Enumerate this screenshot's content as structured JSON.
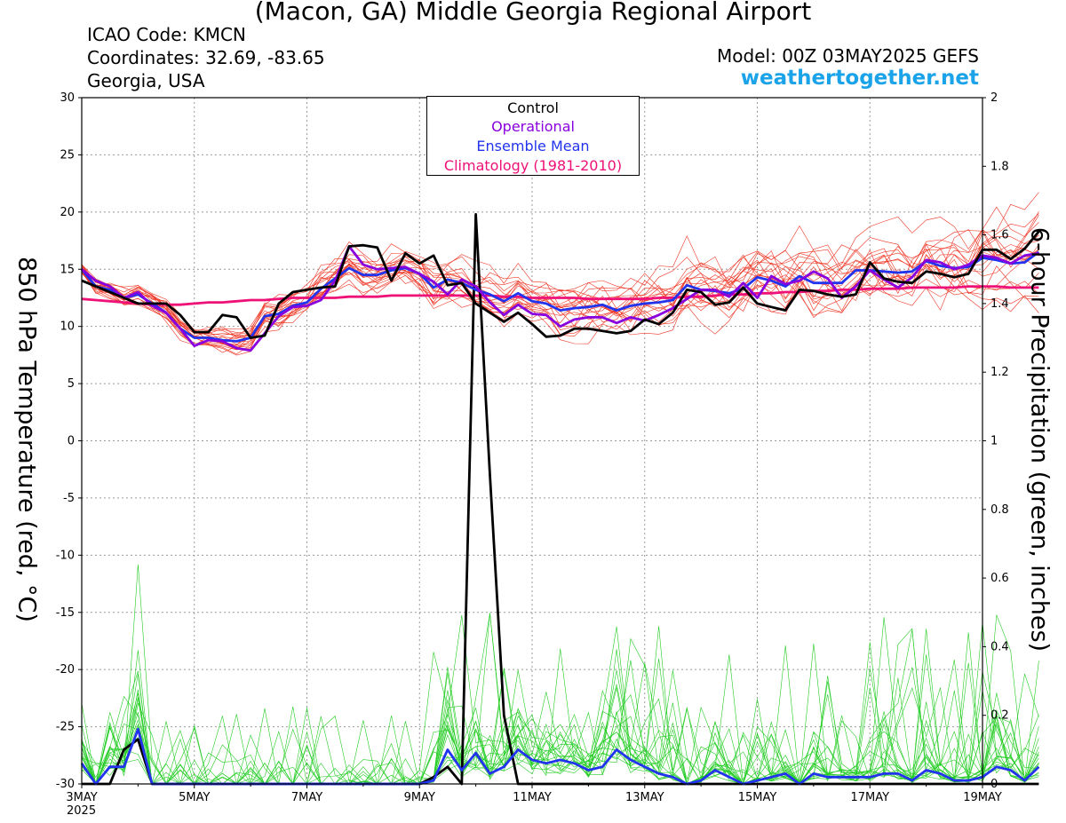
{
  "header": {
    "title": "(Macon, GA) Middle Georgia Regional Airport",
    "icao": "ICAO Code: KMCN",
    "coordinates": "Coordinates: 32.69, -83.65",
    "region": "Georgia, USA",
    "model": "Model: 00Z 03MAY2025 GEFS",
    "site": "weathertogether.net"
  },
  "colors": {
    "control": "#000000",
    "operational": "#8800dd",
    "ensemble_mean": "#2233ee",
    "climatology": "#ee1177",
    "members_temp": "#ee3322",
    "members_precip": "#22cc22",
    "site": "#1aa3e8"
  },
  "chart_data": {
    "type": "line",
    "legend": [
      "Control",
      "Operational",
      "Ensemble Mean",
      "Climatology (1981-2010)"
    ],
    "legend_placement": "top-center",
    "xlabel": "",
    "ylabel_left": "850 hPa Temperature (red, °C)",
    "ylabel_right": "6-hour Precipitation (green, inches)",
    "x_tick_labels": [
      "3MAY",
      "5MAY",
      "7MAY",
      "9MAY",
      "11MAY",
      "13MAY",
      "15MAY",
      "17MAY",
      "19MAY"
    ],
    "x_year_label": "2025",
    "x_range_days": [
      0,
      16
    ],
    "ylim_left": [
      -30,
      30
    ],
    "y_ticks_left": [
      30,
      25,
      20,
      15,
      10,
      5,
      0,
      -5,
      -10,
      -15,
      -20,
      -25,
      -30
    ],
    "ylim_right": [
      0,
      2
    ],
    "y_ticks_right": [
      "2",
      "1.8",
      "1.6",
      "1.4",
      "1.2",
      "1",
      "0.8",
      "0.6",
      "0.4",
      "0.2",
      "0"
    ],
    "grid": true,
    "time_step_hours": 6,
    "series": [
      {
        "name": "Control",
        "axis": "left",
        "values": [
          14.0,
          13.5,
          13.0,
          12.5,
          12.0,
          12.0,
          12.0,
          11.0,
          9.5,
          9.5,
          11.0,
          10.8,
          9.0,
          9.2,
          12.0,
          13.0,
          13.2,
          13.4,
          13.5,
          17.0,
          17.1,
          16.9,
          14.0,
          16.4,
          15.5,
          16.2,
          13.6,
          13.8,
          12.0,
          11.2,
          10.4,
          11.2,
          10.2,
          9.1,
          9.2,
          9.8,
          9.8,
          9.6,
          9.4,
          9.6,
          10.6,
          10.2,
          11.2,
          13.2,
          13.0,
          11.9,
          12.1,
          13.4,
          12.0,
          11.7,
          11.4,
          13.2,
          13.1,
          12.8,
          12.6,
          12.8,
          15.6,
          14.2,
          13.9,
          13.8,
          14.8,
          14.6,
          14.3,
          14.6,
          16.7,
          16.7,
          15.9,
          16.8,
          18.3
        ]
      },
      {
        "name": "Operational",
        "axis": "left",
        "values": [
          15.0,
          14.0,
          13.5,
          12.5,
          13.0,
          11.8,
          11.2,
          9.8,
          8.3,
          8.8,
          8.7,
          8.1,
          7.9,
          9.4,
          10.9,
          11.7,
          11.8,
          12.3,
          14.0,
          17.0,
          15.4,
          15.0,
          15.1,
          15.2,
          14.6,
          13.9,
          12.8,
          14.1,
          13.5,
          12.1,
          11.0,
          11.9,
          11.1,
          11.0,
          10.0,
          10.6,
          10.8,
          10.8,
          10.3,
          10.8,
          10.5,
          11.0,
          11.6,
          12.4,
          13.2,
          13.2,
          12.6,
          13.8,
          12.5,
          14.4,
          13.7,
          14.0,
          14.8,
          14.2,
          12.5,
          13.5,
          14.9,
          14.1,
          13.4,
          14.3,
          15.8,
          15.6,
          15.0,
          15.4,
          16.2,
          16.0,
          15.5,
          16.2,
          16.4
        ]
      },
      {
        "name": "Ensemble Mean",
        "axis": "left",
        "values": [
          15.0,
          13.5,
          13.2,
          12.5,
          12.8,
          12.0,
          11.2,
          9.8,
          9.0,
          9.0,
          8.8,
          8.7,
          9.0,
          10.9,
          11.1,
          11.8,
          12.1,
          13.3,
          14.2,
          15.1,
          14.5,
          14.5,
          14.9,
          15.1,
          14.6,
          13.4,
          14.1,
          13.8,
          13.2,
          12.8,
          12.2,
          12.9,
          12.2,
          12.0,
          11.4,
          11.6,
          11.7,
          11.9,
          11.4,
          11.8,
          12.0,
          12.1,
          12.3,
          13.6,
          13.2,
          13.1,
          12.9,
          13.3,
          14.3,
          14.0,
          13.5,
          14.4,
          13.8,
          13.8,
          13.8,
          14.9,
          14.9,
          14.8,
          14.7,
          14.8,
          15.7,
          15.3,
          15.1,
          15.2,
          16.0,
          15.8,
          15.5,
          15.6,
          16.5
        ]
      },
      {
        "name": "Climatology (1981-2010)",
        "axis": "left",
        "values": [
          12.4,
          12.3,
          12.2,
          12.1,
          12.0,
          11.9,
          11.9,
          11.9,
          12.0,
          12.1,
          12.1,
          12.2,
          12.3,
          12.3,
          12.4,
          12.5,
          12.5,
          12.5,
          12.5,
          12.6,
          12.6,
          12.6,
          12.7,
          12.7,
          12.7,
          12.7,
          12.7,
          12.7,
          12.7,
          12.7,
          12.6,
          12.6,
          12.5,
          12.5,
          12.5,
          12.5,
          12.4,
          12.4,
          12.4,
          12.4,
          12.4,
          12.5,
          12.5,
          12.6,
          12.6,
          12.7,
          12.8,
          12.8,
          12.9,
          12.9,
          13.0,
          13.0,
          13.1,
          13.1,
          13.2,
          13.2,
          13.3,
          13.3,
          13.3,
          13.4,
          13.4,
          13.4,
          13.4,
          13.5,
          13.5,
          13.5,
          13.4,
          13.4,
          13.4
        ]
      },
      {
        "name": "Control",
        "axis": "right",
        "values": [
          0,
          0,
          0,
          0.1,
          0.13,
          0,
          0,
          0,
          0,
          0,
          0,
          0,
          0,
          0,
          0,
          0,
          0,
          0,
          0,
          0,
          0,
          0,
          0,
          0,
          0,
          0.02,
          0.05,
          0,
          1.66,
          0.9,
          0.2,
          0,
          0,
          0,
          0,
          0,
          0,
          0,
          0,
          0,
          0,
          0,
          0,
          0,
          0,
          0,
          0,
          0,
          0,
          0,
          0,
          0,
          0,
          0,
          0,
          0,
          0,
          0,
          0,
          0,
          0,
          0,
          0,
          0,
          0,
          0,
          0,
          0,
          0
        ]
      },
      {
        "name": "Ensemble Mean",
        "axis": "right",
        "values": [
          0.06,
          0,
          0.05,
          0.05,
          0.16,
          0,
          0,
          0,
          0,
          0,
          0,
          0,
          0,
          0,
          0,
          0,
          0,
          0,
          0,
          0,
          0,
          0,
          0,
          0,
          0,
          0.01,
          0.1,
          0.04,
          0.09,
          0.03,
          0.05,
          0.1,
          0.07,
          0.06,
          0.07,
          0.06,
          0.04,
          0.05,
          0.1,
          0.07,
          0.05,
          0.03,
          0.02,
          0,
          0.01,
          0.04,
          0.02,
          0,
          0.01,
          0.02,
          0.03,
          0,
          0.03,
          0.02,
          0.02,
          0.02,
          0.02,
          0.03,
          0.03,
          0.01,
          0.04,
          0.03,
          0.01,
          0.01,
          0.02,
          0.05,
          0.04,
          0.01,
          0.05
        ]
      }
    ]
  }
}
